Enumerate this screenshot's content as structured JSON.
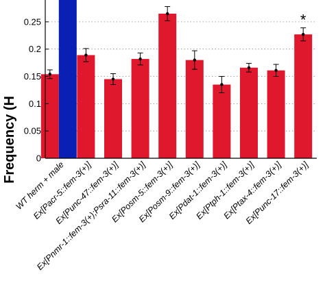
{
  "chart_data": {
    "type": "bar",
    "ylabel": "Frequency (H",
    "ylim": [
      0,
      0.29
    ],
    "yticks": [
      0,
      0.05,
      0.1,
      0.15,
      0.2,
      0.25
    ],
    "ytick_labels": [
      "0",
      "0.05",
      "0.1",
      "0.15",
      "0.2",
      "0.25"
    ],
    "grid": "horizontal dotted",
    "categories": [
      "WT herm + male",
      "Ex[Pacr-5::fem-3(+)]",
      "Ex[Punc-47::fem-3(+)]",
      "Ex[Pnmr-1::fem-3(+);Psra-11::fem-3(+)]",
      "Ex[Posm-5::fem-3(+)]",
      "Ex[Posm-9::fem-3(+)]",
      "Ex[Pdat-1::fem-3(+)]",
      "Ex[Ptph-1::fem-3(+)]",
      "Ex[Ptax-4::fem-3(+)]",
      "Ex[Punc-17::fem-3(+)]"
    ],
    "series": [
      {
        "color": "#e0182d",
        "values": [
          0.154,
          0.189,
          0.145,
          0.182,
          0.265,
          0.18,
          0.135,
          0.166,
          0.161,
          0.227
        ],
        "errors": [
          0.008,
          0.012,
          0.01,
          0.011,
          0.013,
          0.017,
          0.015,
          0.008,
          0.011,
          0.012
        ]
      },
      {
        "color": "#0a1fb4",
        "values": [
          0.29,
          null,
          null,
          null,
          null,
          null,
          null,
          null,
          null,
          null
        ],
        "errors": [
          null,
          null,
          null,
          null,
          null,
          null,
          null,
          null,
          null,
          null
        ]
      }
    ],
    "annotations": [
      {
        "category_index": 9,
        "text": "*"
      }
    ]
  }
}
